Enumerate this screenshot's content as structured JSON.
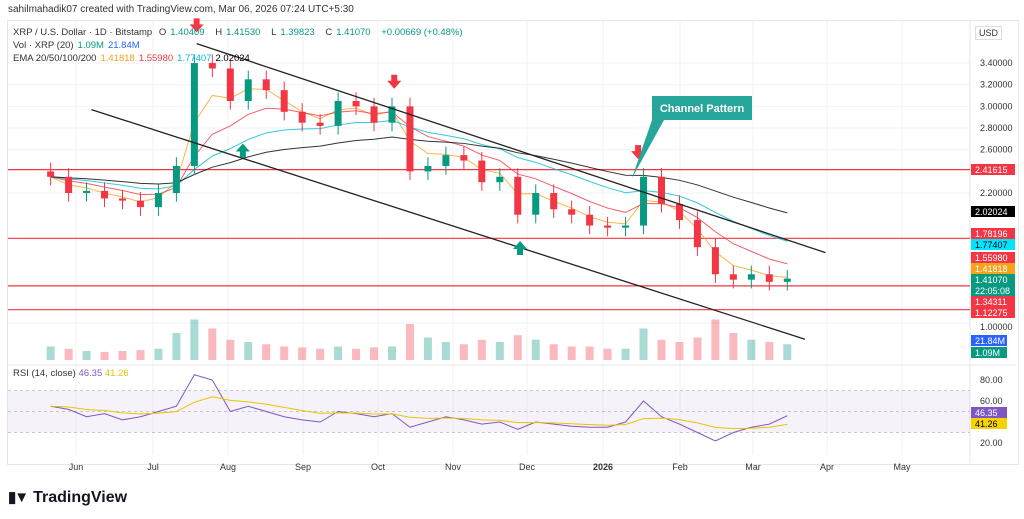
{
  "credit": "sahilmahadik07 created with TradingView.com, Mar 06, 2026 07:24 UTC+5:30",
  "legend": {
    "symbol": "XRP / U.S. Dollar · 1D · Bitstamp",
    "o_label": "O",
    "o": "1.40409",
    "h_label": "H",
    "h": "1.41530",
    "l_label": "L",
    "l": "1.39823",
    "c_label": "C",
    "c": "1.41070",
    "change": "+0.00669 (+0.48%)",
    "vol_label": "Vol · XRP (20)",
    "vol": "1.09M",
    "vol_ma": "21.84M",
    "ema_label": "EMA 20/50/100/200",
    "ema20": "1.41818",
    "ema50": "1.55980",
    "ema100": "1.77407",
    "ema200": "2.02024"
  },
  "currency": "USD",
  "rsi": {
    "label": "RSI (14, close)",
    "value": "46.35",
    "ma": "41.26"
  },
  "annotation": "Channel Pattern",
  "logo": "TradingView",
  "colors": {
    "up": "#089981",
    "down": "#f23645",
    "ema20": "#f7a21b",
    "ema50": "#f23645",
    "ema100": "#00bcd4",
    "ema200": "#000000",
    "rsi": "#7e57c2",
    "rsi_ma": "#e8c500",
    "annotation": "#26a69a"
  },
  "chart_data": {
    "type": "candlestick",
    "x_ticks": [
      "Jun",
      "Jul",
      "Aug",
      "Sep",
      "Oct",
      "Nov",
      "Dec",
      "2026",
      "Feb",
      "Mar",
      "Apr",
      "May"
    ],
    "price_ticks": [
      "3.40000",
      "3.20000",
      "3.00000",
      "2.80000",
      "2.60000",
      "2.20000",
      "1.00000"
    ],
    "price_tick_values": [
      3.4,
      3.2,
      3.0,
      2.8,
      2.6,
      2.2,
      1.0
    ],
    "rsi_ticks": [
      "80.00",
      "60.00",
      "20.00"
    ],
    "rsi_tick_values": [
      80,
      60,
      20
    ],
    "dates": [
      "2025-05-19",
      "2025-05-26",
      "2025-06-02",
      "2025-06-09",
      "2025-06-16",
      "2025-06-23",
      "2025-06-30",
      "2025-07-07",
      "2025-07-14",
      "2025-07-21",
      "2025-07-28",
      "2025-08-04",
      "2025-08-11",
      "2025-08-18",
      "2025-08-25",
      "2025-09-01",
      "2025-09-08",
      "2025-09-15",
      "2025-09-22",
      "2025-09-29",
      "2025-10-06",
      "2025-10-13",
      "2025-10-20",
      "2025-10-27",
      "2025-11-03",
      "2025-11-10",
      "2025-11-17",
      "2025-11-24",
      "2025-12-01",
      "2025-12-08",
      "2025-12-15",
      "2025-12-22",
      "2025-12-29",
      "2026-01-05",
      "2026-01-12",
      "2026-01-19",
      "2026-01-26",
      "2026-02-02",
      "2026-02-09",
      "2026-02-16",
      "2026-02-23",
      "2026-03-02"
    ],
    "close": [
      2.35,
      2.2,
      2.22,
      2.15,
      2.13,
      2.07,
      2.2,
      2.45,
      3.4,
      3.35,
      3.05,
      3.25,
      3.15,
      2.95,
      2.85,
      2.82,
      3.05,
      3.0,
      2.85,
      3.0,
      2.4,
      2.45,
      2.55,
      2.5,
      2.3,
      2.35,
      2.0,
      2.2,
      2.05,
      2.0,
      1.9,
      1.88,
      1.9,
      2.35,
      2.1,
      1.95,
      1.7,
      1.45,
      1.4,
      1.45,
      1.38,
      1.41
    ],
    "volume_m": [
      30,
      25,
      20,
      18,
      20,
      22,
      25,
      60,
      90,
      70,
      45,
      40,
      35,
      30,
      28,
      25,
      30,
      25,
      28,
      30,
      80,
      50,
      40,
      35,
      45,
      40,
      55,
      45,
      35,
      30,
      30,
      25,
      25,
      70,
      45,
      40,
      50,
      90,
      60,
      45,
      40,
      35
    ],
    "rsi": [
      55,
      52,
      45,
      48,
      42,
      45,
      50,
      55,
      85,
      80,
      50,
      55,
      50,
      45,
      42,
      40,
      50,
      48,
      45,
      48,
      35,
      40,
      45,
      42,
      38,
      40,
      33,
      40,
      38,
      36,
      35,
      35,
      40,
      60,
      45,
      38,
      30,
      22,
      30,
      35,
      38,
      46
    ],
    "price_labels": [
      {
        "text": "2.41615",
        "value": 2.41615,
        "color": "#f23645"
      },
      {
        "text": "2.02024",
        "value": 2.02024,
        "color": "#000000"
      },
      {
        "text": "1.78196",
        "value": 1.78196,
        "color": "#f23645"
      },
      {
        "text": "1.77407",
        "value": 1.77407,
        "color": "#00e5ff"
      },
      {
        "text": "1.55980",
        "value": 1.5598,
        "color": "#f23645"
      },
      {
        "text": "1.41818",
        "value": 1.41818,
        "color": "#f7a21b"
      },
      {
        "text": "1.41070",
        "value": 1.4107,
        "color": "#089981"
      },
      {
        "text": "1.34311",
        "value": 1.34311,
        "color": "#f23645"
      },
      {
        "text": "1.12275",
        "value": 1.12275,
        "color": "#f23645"
      }
    ],
    "countdown": "22:05:08",
    "horizontal_levels": [
      2.41615,
      1.78196,
      1.34311,
      1.12275
    ],
    "channel_upper": [
      [
        "2025-07-18",
        3.58
      ],
      [
        "2026-03-20",
        1.65
      ]
    ],
    "channel_lower": [
      [
        "2025-06-07",
        2.97
      ],
      [
        "2026-03-12",
        0.85
      ]
    ],
    "markers": [
      {
        "type": "down",
        "date": "2025-07-18",
        "price": 3.72
      },
      {
        "type": "down",
        "date": "2025-10-03",
        "price": 3.2
      },
      {
        "type": "down",
        "date": "2026-01-06",
        "price": 2.55
      },
      {
        "type": "up",
        "date": "2025-08-05",
        "price": 2.62
      },
      {
        "type": "up",
        "date": "2025-11-21",
        "price": 1.72
      }
    ]
  }
}
